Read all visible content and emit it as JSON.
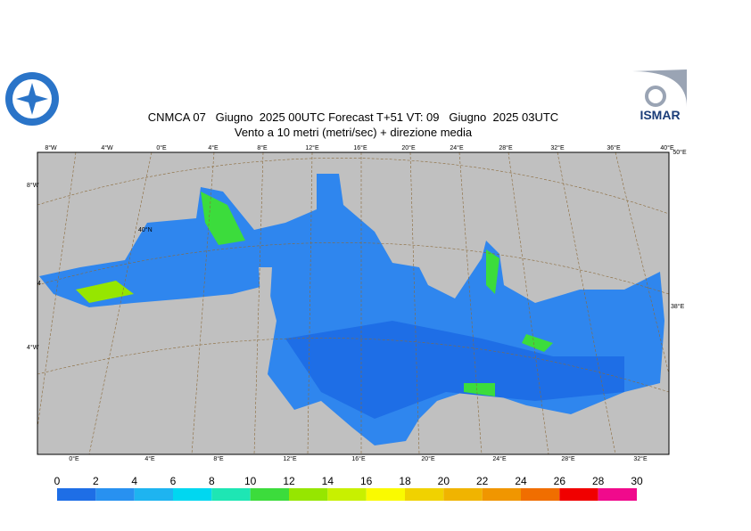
{
  "header": {
    "title": "CNMCA 07   Giugno  2025 00UTC Forecast T+51 VT: 09   Giugno  2025 03UTC",
    "subtitle": "Vento a 10 metri (metri/sec) + direzione media",
    "logo_right": "ISMAR"
  },
  "map": {
    "top_labels": [
      "8°W",
      "4°W",
      "0°E",
      "4°E",
      "8°E",
      "12°E",
      "16°E",
      "20°E",
      "24°E",
      "28°E",
      "32°E",
      "36°E",
      "40°E",
      "50°E"
    ],
    "left_labels": [
      "8°W",
      "40°N",
      "4",
      "4°W"
    ],
    "right_labels": [
      "38°E"
    ],
    "bottom_labels": [
      "0°E",
      "4°E",
      "8°E",
      "12°E",
      "16°E",
      "20°E",
      "24°E",
      "28°E",
      "32°E"
    ]
  },
  "colorbar": {
    "ticks": [
      0,
      2,
      4,
      6,
      8,
      10,
      12,
      14,
      16,
      18,
      20,
      22,
      24,
      26,
      28,
      30
    ],
    "colors": [
      "#1e6ee6",
      "#2891f0",
      "#1eb4f0",
      "#00d7f0",
      "#1ee6b4",
      "#3cdc3c",
      "#96e600",
      "#c8f000",
      "#fafa00",
      "#f0d200",
      "#f0b400",
      "#f09600",
      "#f06e00",
      "#f00000",
      "#f00a8c"
    ]
  }
}
